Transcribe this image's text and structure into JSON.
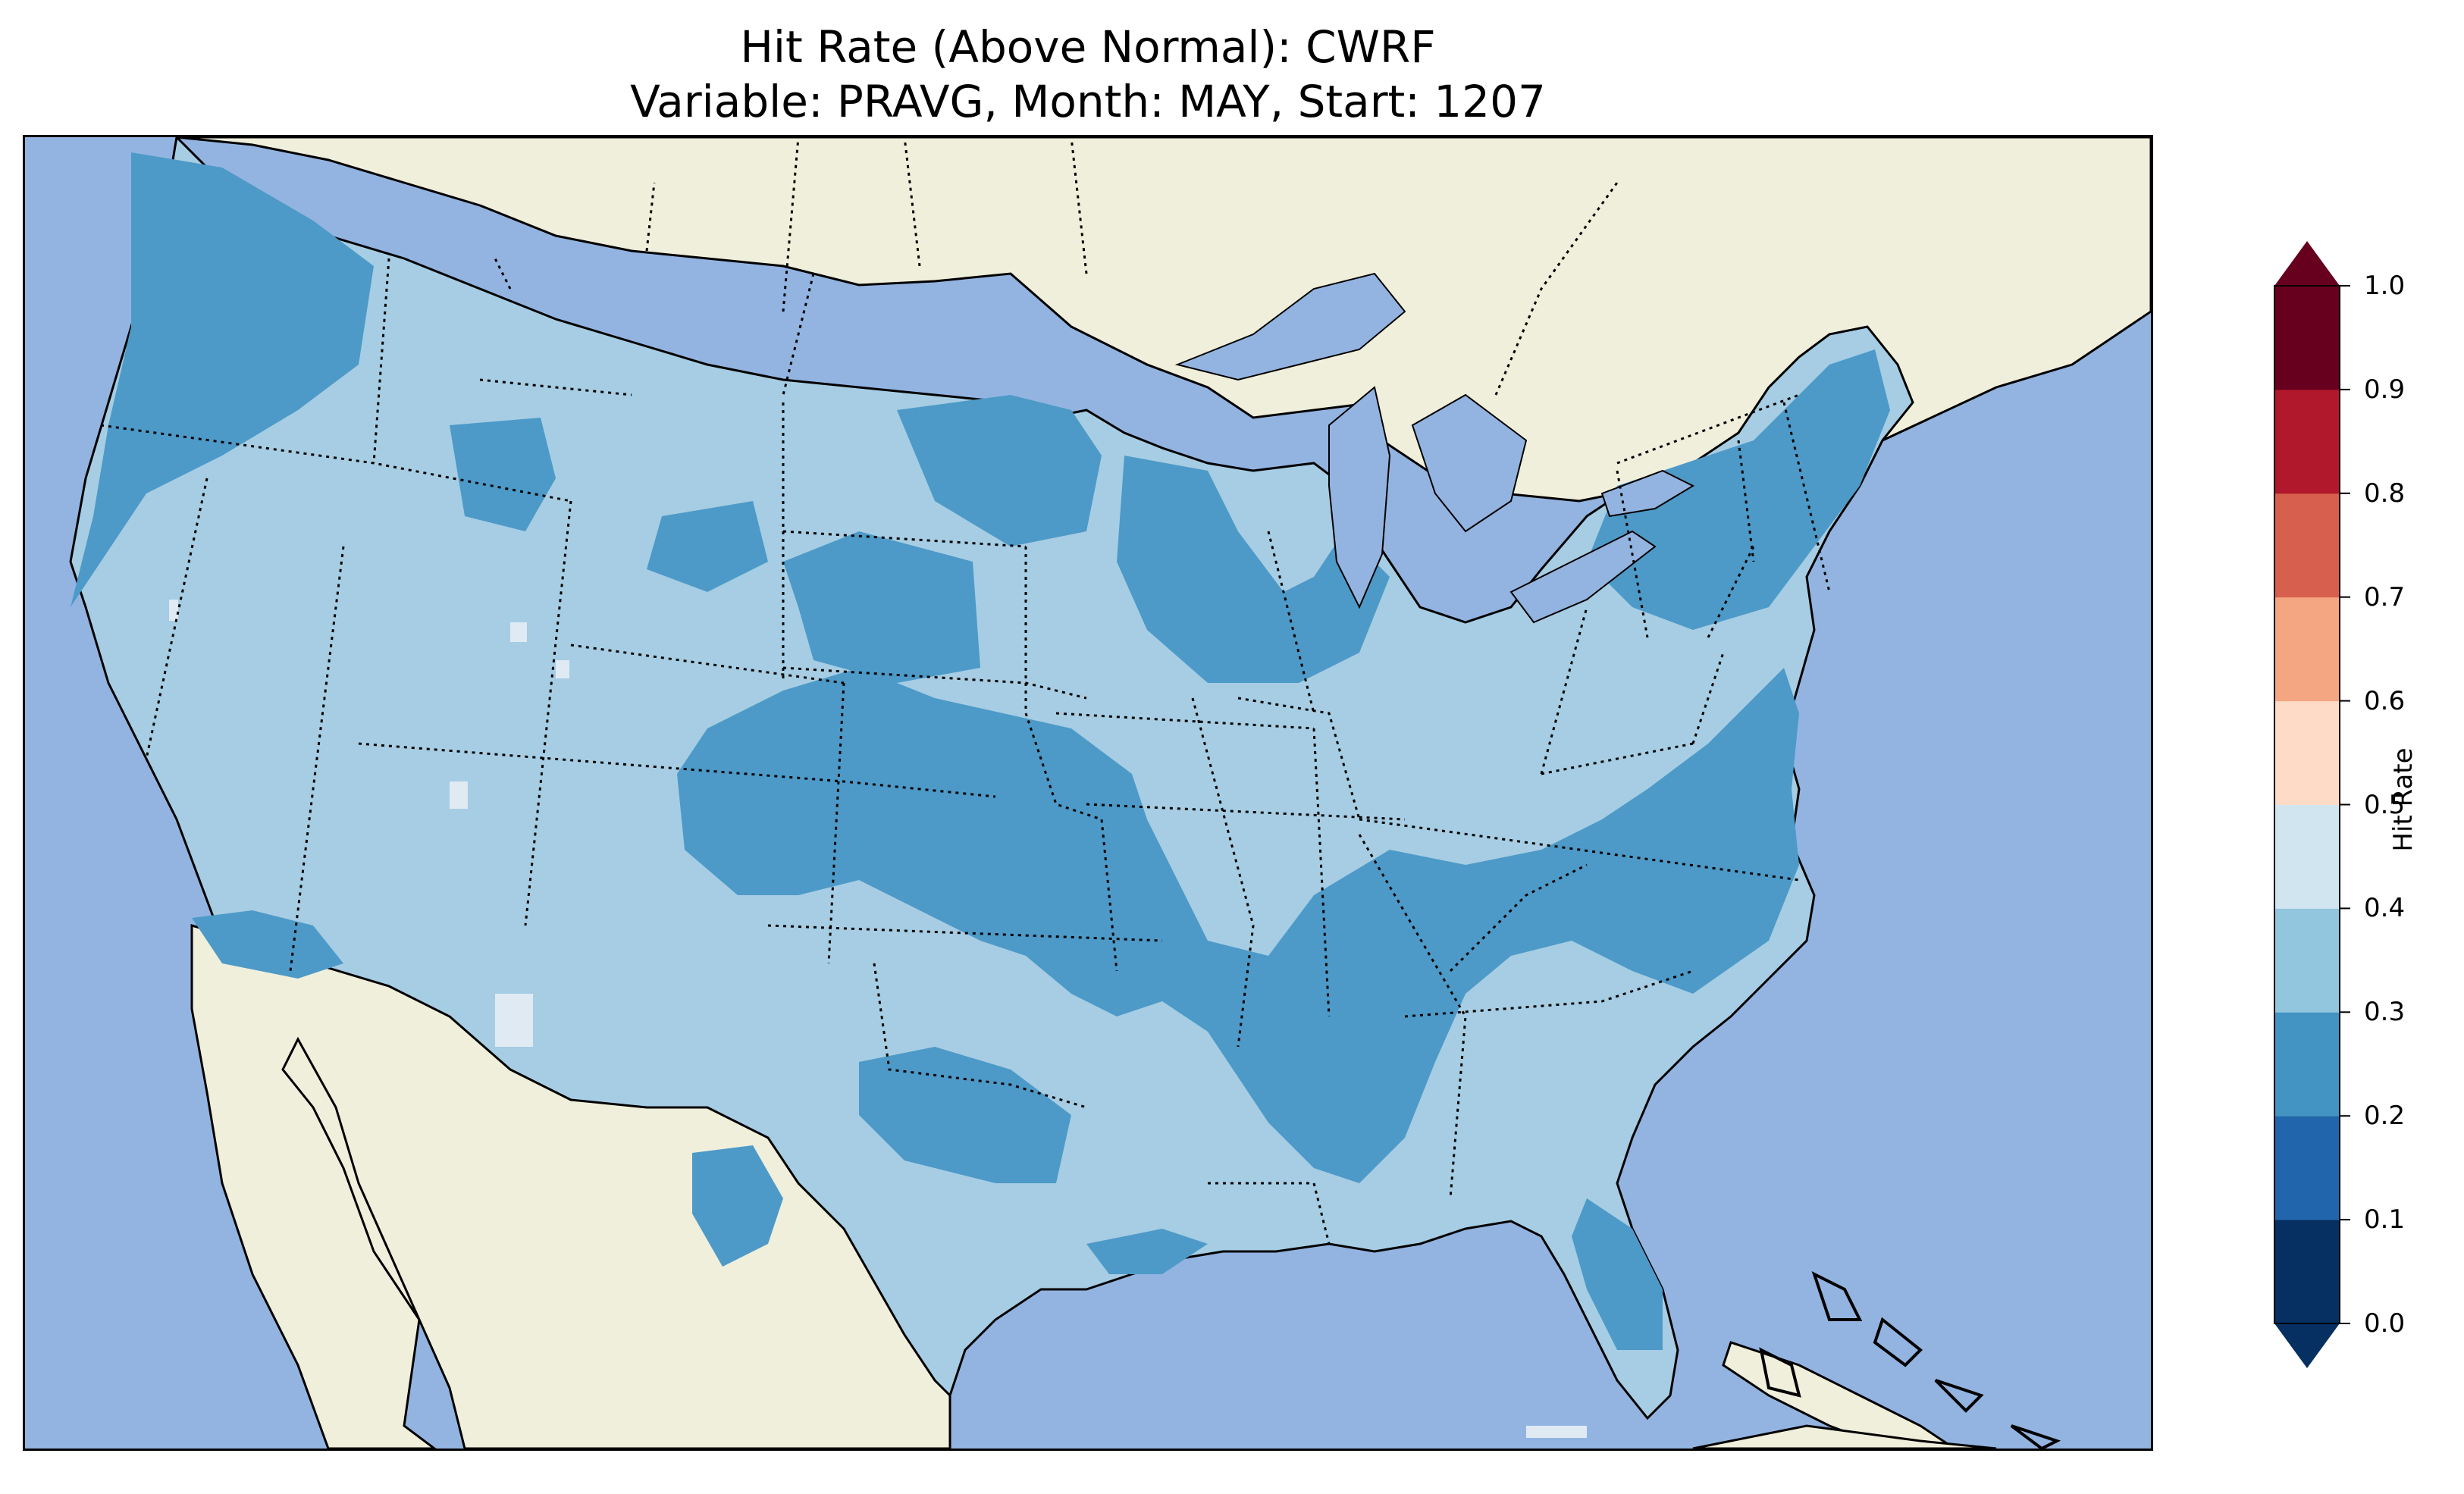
{
  "title": {
    "line1": "Hit Rate (Above Normal): CWRF",
    "line2": "Variable: PRAVG, Month: MAY, Start: 1207"
  },
  "colors": {
    "ocean": "#93b4e1",
    "land": "#f0efdc",
    "border": "#000000"
  },
  "colorbar": {
    "label": "Hit Rate",
    "ticks": [
      "0.0",
      "0.1",
      "0.2",
      "0.3",
      "0.4",
      "0.5",
      "0.6",
      "0.7",
      "0.8",
      "0.9",
      "1.0"
    ],
    "bins": [
      {
        "range": [
          0.0,
          0.1
        ],
        "color": "#053061"
      },
      {
        "range": [
          0.1,
          0.2
        ],
        "color": "#2166ac"
      },
      {
        "range": [
          0.2,
          0.3
        ],
        "color": "#4393c3"
      },
      {
        "range": [
          0.3,
          0.4
        ],
        "color": "#92c5de"
      },
      {
        "range": [
          0.4,
          0.5
        ],
        "color": "#d1e5f0"
      },
      {
        "range": [
          0.5,
          0.6
        ],
        "color": "#fddbc7"
      },
      {
        "range": [
          0.6,
          0.7
        ],
        "color": "#f4a582"
      },
      {
        "range": [
          0.7,
          0.8
        ],
        "color": "#d6604d"
      },
      {
        "range": [
          0.8,
          0.9
        ],
        "color": "#b2182b"
      },
      {
        "range": [
          0.9,
          1.0
        ],
        "color": "#67001f"
      }
    ],
    "extend_low_color": "#053061",
    "extend_high_color": "#67001f"
  },
  "map_fill": {
    "background_value_color": "#a6cde3",
    "low_value_color": "#4d9ac8",
    "high_value_color": "#dfeaf3"
  }
}
